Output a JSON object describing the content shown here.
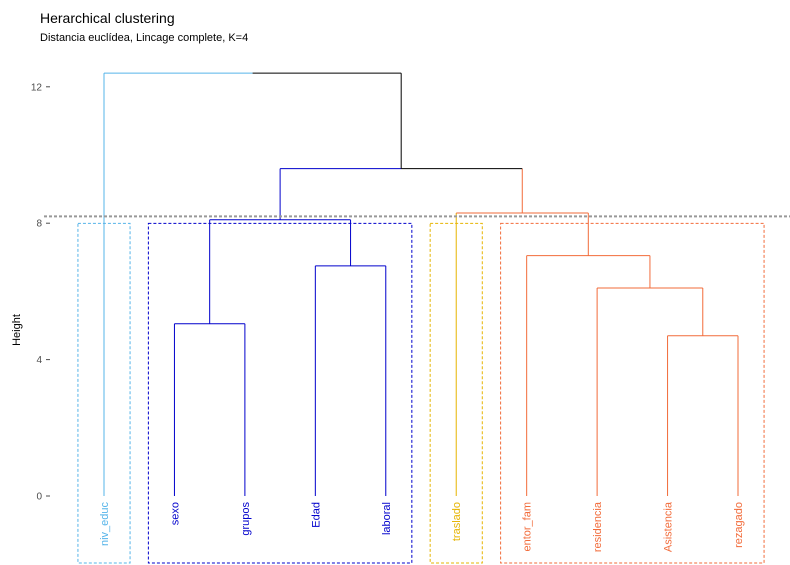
{
  "chart_data": {
    "type": "dendrogram",
    "title": "Herarchical clustering",
    "subtitle": "Distancia euclídea, Lincage complete, K=4",
    "ylabel": "Height",
    "xlabel": "",
    "ylim": [
      0,
      12.4
    ],
    "yticks": [
      0,
      4,
      8,
      12
    ],
    "cut_height": 8.2,
    "leaves": [
      {
        "label": "niv_educ",
        "cluster": 0
      },
      {
        "label": "sexo",
        "cluster": 1
      },
      {
        "label": "grupos",
        "cluster": 1
      },
      {
        "label": "Edad",
        "cluster": 1
      },
      {
        "label": "laboral",
        "cluster": 1
      },
      {
        "label": "traslado",
        "cluster": 2
      },
      {
        "label": "entor_fam",
        "cluster": 3
      },
      {
        "label": "residencia",
        "cluster": 3
      },
      {
        "label": "Asistencia",
        "cluster": 3
      },
      {
        "label": "rezagado",
        "cluster": 3
      }
    ],
    "merges": [
      {
        "left": "L1",
        "right": "L2",
        "height": 5.05,
        "cluster": 1
      },
      {
        "left": "L3",
        "right": "L4",
        "height": 6.75,
        "cluster": 1
      },
      {
        "left": "M0",
        "right": "M1",
        "height": 8.1,
        "cluster": 1
      },
      {
        "left": "L8",
        "right": "L9",
        "height": 4.7,
        "cluster": 3
      },
      {
        "left": "L7",
        "right": "M3",
        "height": 6.1,
        "cluster": 3
      },
      {
        "left": "L6",
        "right": "M4",
        "height": 7.05,
        "cluster": 3
      },
      {
        "left": "L5",
        "right": "M5",
        "height": 8.3,
        "cluster": 3
      },
      {
        "left": "M2",
        "right": "M6",
        "height": 9.6,
        "cluster": -1
      },
      {
        "left": "L0",
        "right": "M7",
        "height": 12.4,
        "cluster": -1
      }
    ],
    "cluster_colors": [
      "#56B4E9",
      "#0000CC",
      "#E6B400",
      "#F26B3A"
    ],
    "neutral_color": "#000000",
    "cut_line_color": "#999999"
  }
}
